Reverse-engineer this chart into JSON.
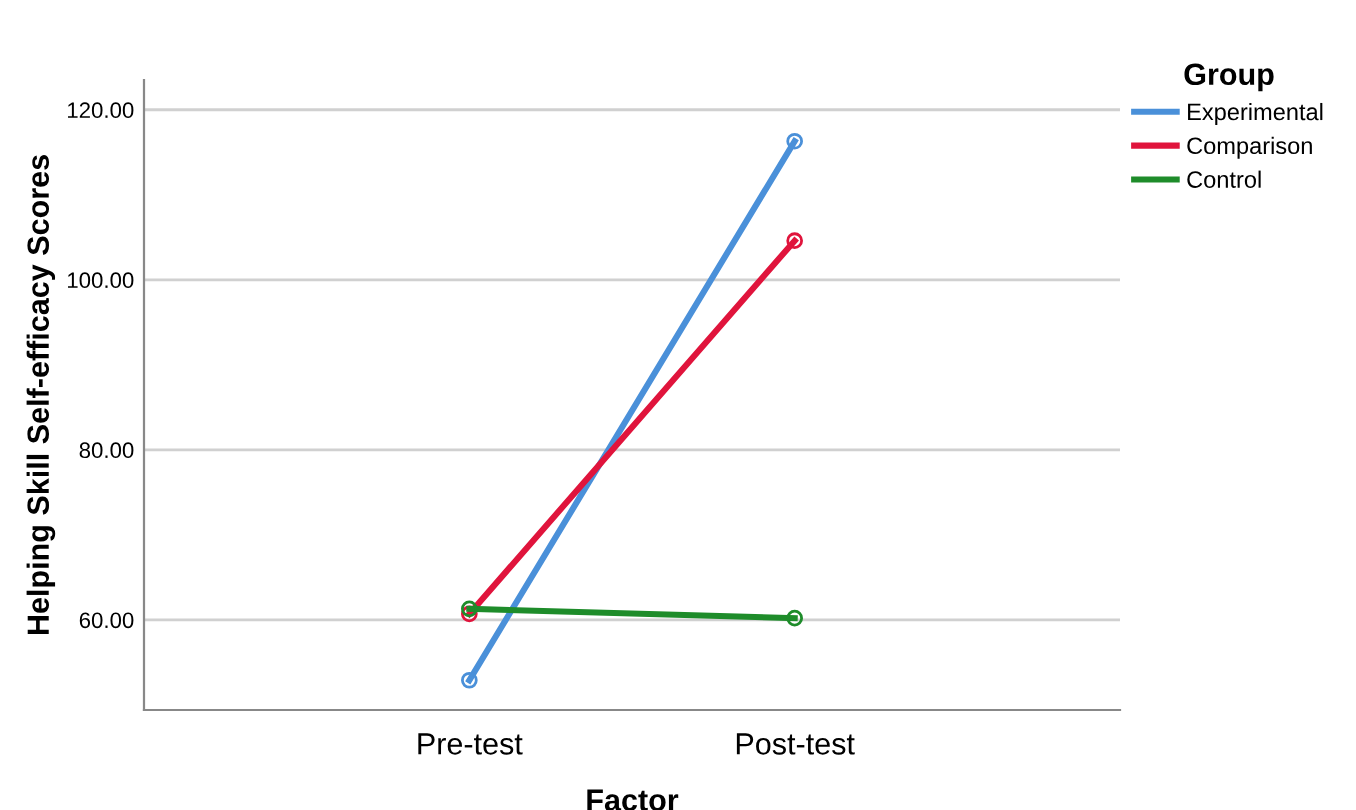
{
  "chart_data": {
    "type": "line",
    "xlabel": "Factor",
    "ylabel": "Helping Skill Self-efficacy Scores",
    "legend_title": "Group",
    "categories": [
      "Pre-test",
      "Post-test"
    ],
    "series": [
      {
        "name": "Experimental",
        "color": "#4a90d9",
        "values": [
          52.9,
          116.3
        ]
      },
      {
        "name": "Comparison",
        "color": "#e0143c",
        "values": [
          60.7,
          104.6
        ]
      },
      {
        "name": "Control",
        "color": "#1e8c2a",
        "values": [
          61.3,
          60.2
        ]
      }
    ],
    "ylim": [
      49.4,
      123.5
    ],
    "yticks": [
      {
        "value": 60,
        "label": "60.00"
      },
      {
        "value": 80,
        "label": "80.00"
      },
      {
        "value": 100,
        "label": "100.00"
      },
      {
        "value": 120,
        "label": "120.00"
      }
    ],
    "grid": "y",
    "legend": "top right",
    "marker": "circle",
    "line_style": "solid"
  }
}
